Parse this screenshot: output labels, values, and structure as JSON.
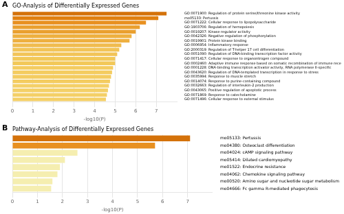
{
  "chart_data": [
    {
      "type": "bar",
      "orientation": "horizontal",
      "title": "GO-Analysis of Differentially Expressed Genes",
      "xlabel": "-log10(P)",
      "annotations": [
        "A"
      ],
      "categories": [
        "GO:0071900: Regulation of protein serine/threonine kinase activity",
        "mo05133: Pertussis",
        "GO:0071222: Cellular response to lipopolysaccharide",
        "GO:1903706: Regulation of hemopoiesis",
        "GO:0019207: Kinase regulator activity",
        "GO:0042326: Negative regulation of phosphorylation",
        "GO:0019901: Protein kinase binding",
        "GO:0006954: Inflammatory response",
        "GO:2000319: Regulation of T-helper 17 cell differentiation",
        "GO:0051090: Regulation of DNA-binding transcription factor activity",
        "GO:0071417: Cellular response to organontrogen compound",
        "GO:0002460: Adaptive immune response based on somatic recombination of immune receptors",
        "GO:0001228: DNA-binding transcription activator activity, RNA polymerase II-specific",
        "GO:0043620: Regulation of DNA-templated transcription in response to stress",
        "GO:0035994: Response to muscle stretch",
        "GO:0014074: Response to purine-containing compound",
        "GO:0032663: Regulation of interleukin-2 production",
        "GO:0043065: Positive regulation of apoptotic process",
        "GO:0071869: Response to catecholamine",
        "GO:0071496: Cellular response to external stimulus"
      ],
      "values": [
        7.5,
        7.1,
        6.5,
        6.2,
        6.0,
        5.8,
        5.7,
        5.3,
        5.2,
        5.1,
        5.0,
        5.0,
        4.9,
        4.85,
        4.8,
        4.75,
        4.7,
        4.65,
        4.6,
        4.55
      ],
      "colors": [
        "#D4720A",
        "#E08010",
        "#E89020",
        "#EAA030",
        "#EAA030",
        "#EEB040",
        "#EEB040",
        "#F0BC50",
        "#F2C458",
        "#F2C458",
        "#F2C858",
        "#F2C858",
        "#F4CC60",
        "#F4CC60",
        "#F4CC60",
        "#F4CC60",
        "#F4D068",
        "#F4D068",
        "#F4D068",
        "#F4D068"
      ],
      "xlim": [
        0,
        8
      ],
      "xticks": [
        0,
        1,
        2,
        3,
        4,
        5,
        6,
        7
      ],
      "grid": true
    },
    {
      "type": "bar",
      "orientation": "horizontal",
      "title": "Pathway-Analysis of Differentially Expressed Genes",
      "xlabel": "-log10(P)",
      "annotations": [
        "B"
      ],
      "categories": [
        "mo05133: Pertussis",
        "mo04380: Osteoclast differentiation",
        "mo04024: cAMP signaling pathway",
        "mo05414: Dilated cardiomyopathy",
        "mo01522: Endocrine resistance",
        "mo04062: Chemokine signaling pathway",
        "mo00520: Amino sugar and nucleotide sugar metabolism",
        "mo04666: Fc gamma R-mediated phagocytosis"
      ],
      "values": [
        7.1,
        5.7,
        2.6,
        2.1,
        1.9,
        1.8,
        1.6,
        1.55
      ],
      "colors": [
        "#D4720A",
        "#E89020",
        "#F5EEB0",
        "#F5EEB0",
        "#F5EEB0",
        "#F5EEB0",
        "#F5EEB0",
        "#F5EEB0"
      ],
      "xlim": [
        0,
        8
      ],
      "xticks": [
        0,
        1,
        2,
        3,
        4,
        5,
        6,
        7
      ],
      "grid": true
    }
  ]
}
